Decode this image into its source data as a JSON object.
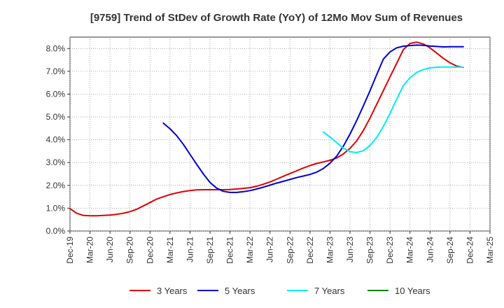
{
  "chart_data": {
    "type": "line",
    "title": "[9759]  Trend of StDev of Growth Rate (YoY) of 12Mo Mov Sum of Revenues",
    "xlabel": "",
    "ylabel": "",
    "ylim": [
      0,
      0.085
    ],
    "yticks": [
      0.0,
      0.01,
      0.02,
      0.03,
      0.04,
      0.05,
      0.06,
      0.07,
      0.08
    ],
    "ytick_labels": [
      "0.0%",
      "1.0%",
      "2.0%",
      "3.0%",
      "4.0%",
      "5.0%",
      "6.0%",
      "7.0%",
      "8.0%"
    ],
    "x_range": [
      0,
      63
    ],
    "xtick_labels": [
      "Dec-19",
      "Mar-20",
      "Jun-20",
      "Sep-20",
      "Dec-20",
      "Mar-21",
      "Jun-21",
      "Sep-21",
      "Dec-21",
      "Mar-22",
      "Jun-22",
      "Sep-22",
      "Dec-22",
      "Mar-23",
      "Jun-23",
      "Sep-23",
      "Dec-23",
      "Mar-24",
      "Jun-24",
      "Sep-24",
      "Dec-24",
      "Mar-25"
    ],
    "grid": true,
    "legend_position": "bottom",
    "series": [
      {
        "name": "3 Years",
        "color": "#dd0000",
        "points": [
          [
            0,
            0.0098
          ],
          [
            1,
            0.0078
          ],
          [
            2,
            0.0068
          ],
          [
            3,
            0.0067
          ],
          [
            4,
            0.0067
          ],
          [
            5,
            0.0068
          ],
          [
            6,
            0.007
          ],
          [
            7,
            0.0073
          ],
          [
            8,
            0.0078
          ],
          [
            9,
            0.0085
          ],
          [
            10,
            0.0095
          ],
          [
            11,
            0.011
          ],
          [
            12,
            0.0125
          ],
          [
            13,
            0.014
          ],
          [
            14,
            0.015
          ],
          [
            15,
            0.016
          ],
          [
            16,
            0.0167
          ],
          [
            17,
            0.0173
          ],
          [
            18,
            0.0177
          ],
          [
            19,
            0.018
          ],
          [
            20,
            0.0181
          ],
          [
            21,
            0.0181
          ],
          [
            22,
            0.0181
          ],
          [
            23,
            0.0181
          ],
          [
            24,
            0.0182
          ],
          [
            25,
            0.0184
          ],
          [
            26,
            0.0187
          ],
          [
            27,
            0.019
          ],
          [
            28,
            0.0196
          ],
          [
            29,
            0.0205
          ],
          [
            30,
            0.0215
          ],
          [
            31,
            0.0227
          ],
          [
            32,
            0.024
          ],
          [
            33,
            0.0252
          ],
          [
            34,
            0.0264
          ],
          [
            35,
            0.0276
          ],
          [
            36,
            0.0287
          ],
          [
            37,
            0.0296
          ],
          [
            38,
            0.0303
          ],
          [
            39,
            0.031
          ],
          [
            40,
            0.032
          ],
          [
            41,
            0.0338
          ],
          [
            42,
            0.0362
          ],
          [
            43,
            0.0395
          ],
          [
            44,
            0.044
          ],
          [
            45,
            0.0495
          ],
          [
            46,
            0.0555
          ],
          [
            47,
            0.0615
          ],
          [
            48,
            0.0675
          ],
          [
            49,
            0.0735
          ],
          [
            50,
            0.0795
          ],
          [
            51,
            0.0822
          ],
          [
            52,
            0.0828
          ],
          [
            53,
            0.082
          ],
          [
            54,
            0.0803
          ],
          [
            55,
            0.078
          ],
          [
            56,
            0.0757
          ],
          [
            57,
            0.0737
          ],
          [
            58,
            0.0723
          ],
          [
            59,
            0.0717
          ]
        ]
      },
      {
        "name": "5 Years",
        "color": "#0000cc",
        "points": [
          [
            14,
            0.0473
          ],
          [
            15,
            0.0448
          ],
          [
            16,
            0.0418
          ],
          [
            17,
            0.038
          ],
          [
            18,
            0.0336
          ],
          [
            19,
            0.0292
          ],
          [
            20,
            0.025
          ],
          [
            21,
            0.0213
          ],
          [
            22,
            0.0188
          ],
          [
            23,
            0.0174
          ],
          [
            24,
            0.0169
          ],
          [
            25,
            0.0169
          ],
          [
            26,
            0.0172
          ],
          [
            27,
            0.0177
          ],
          [
            28,
            0.0184
          ],
          [
            29,
            0.0192
          ],
          [
            30,
            0.0201
          ],
          [
            31,
            0.021
          ],
          [
            32,
            0.0218
          ],
          [
            33,
            0.0226
          ],
          [
            34,
            0.0234
          ],
          [
            35,
            0.0241
          ],
          [
            36,
            0.0248
          ],
          [
            37,
            0.0258
          ],
          [
            38,
            0.0274
          ],
          [
            39,
            0.0297
          ],
          [
            40,
            0.0328
          ],
          [
            41,
            0.0372
          ],
          [
            42,
            0.0425
          ],
          [
            43,
            0.0484
          ],
          [
            44,
            0.0548
          ],
          [
            45,
            0.0615
          ],
          [
            46,
            0.0685
          ],
          [
            47,
            0.0753
          ],
          [
            48,
            0.0785
          ],
          [
            49,
            0.0803
          ],
          [
            50,
            0.081
          ],
          [
            51,
            0.0813
          ],
          [
            52,
            0.0815
          ],
          [
            53,
            0.0814
          ],
          [
            54,
            0.0811
          ],
          [
            55,
            0.0809
          ],
          [
            56,
            0.0807
          ],
          [
            57,
            0.0808
          ],
          [
            58,
            0.0808
          ],
          [
            59,
            0.0808
          ]
        ]
      },
      {
        "name": "7 Years",
        "color": "#00eeee",
        "points": [
          [
            38,
            0.0434
          ],
          [
            39,
            0.0412
          ],
          [
            40,
            0.0387
          ],
          [
            41,
            0.0363
          ],
          [
            42,
            0.0348
          ],
          [
            43,
            0.0344
          ],
          [
            44,
            0.0352
          ],
          [
            45,
            0.0375
          ],
          [
            46,
            0.041
          ],
          [
            47,
            0.0458
          ],
          [
            48,
            0.0515
          ],
          [
            49,
            0.0578
          ],
          [
            50,
            0.0637
          ],
          [
            51,
            0.0672
          ],
          [
            52,
            0.0695
          ],
          [
            53,
            0.0708
          ],
          [
            54,
            0.0715
          ],
          [
            55,
            0.0718
          ],
          [
            56,
            0.0719
          ],
          [
            57,
            0.0719
          ],
          [
            58,
            0.0719
          ],
          [
            59,
            0.0718
          ]
        ]
      },
      {
        "name": "10 Years",
        "color": "#008000",
        "points": []
      }
    ]
  }
}
